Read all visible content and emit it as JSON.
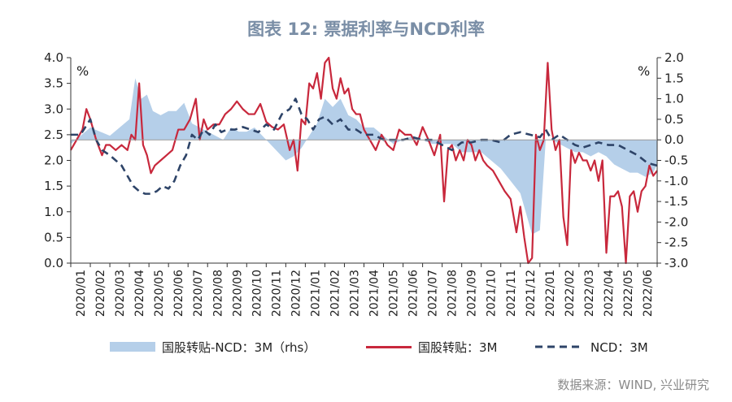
{
  "title": "图表 12:   票据利率与NCD利率",
  "source": "数据来源：WIND, 兴业研究",
  "colors": {
    "spread_fill": "#b5cfe9",
    "bill_line": "#c8283c",
    "ncd_line": "#2e4468",
    "axis": "#333333"
  },
  "chart_data": {
    "type": "line",
    "left_unit": "%",
    "right_unit": "%",
    "y_left_lim": [
      0.0,
      4.0
    ],
    "y_left_ticks": [
      "0.0",
      "0.5",
      "1.0",
      "1.5",
      "2.0",
      "2.5",
      "3.0",
      "3.5",
      "4.0"
    ],
    "y_right_lim": [
      -3.0,
      2.0
    ],
    "y_right_ticks": [
      "-3.0",
      "-2.5",
      "-2.0",
      "-1.5",
      "-1.0",
      "-0.5",
      "0.0",
      "0.5",
      "1.0",
      "1.5",
      "2.0"
    ],
    "x_labels": [
      "2020/01",
      "2020/02",
      "2020/03",
      "2020/04",
      "2020/05",
      "2020/06",
      "2020/07",
      "2020/08",
      "2020/09",
      "2020/10",
      "2020/11",
      "2020/12",
      "2021/01",
      "2021/02",
      "2021/03",
      "2021/04",
      "2021/05",
      "2021/06",
      "2021/07",
      "2021/08",
      "2021/09",
      "2021/10",
      "2021/11",
      "2021/12",
      "2022/01",
      "2022/02",
      "2022/03",
      "2022/04",
      "2022/05",
      "2022/06"
    ],
    "x_domain": [
      0,
      30
    ],
    "legend": [
      {
        "key": "spread",
        "label": "国股转贴-NCD：3M（rhs）",
        "style": "area"
      },
      {
        "key": "bill",
        "label": "国股转贴：3M",
        "style": "line"
      },
      {
        "key": "ncd",
        "label": "NCD：3M",
        "style": "dashed"
      }
    ],
    "series": [
      {
        "name": "国股转贴：3M",
        "axis": "left",
        "x": [
          0,
          0.3,
          0.6,
          0.8,
          1.0,
          1.3,
          1.6,
          1.8,
          2.0,
          2.3,
          2.6,
          2.9,
          3.1,
          3.3,
          3.5,
          3.7,
          3.9,
          4.1,
          4.3,
          4.6,
          4.9,
          5.2,
          5.5,
          5.8,
          6.1,
          6.4,
          6.6,
          6.8,
          7.0,
          7.3,
          7.6,
          7.9,
          8.2,
          8.5,
          8.8,
          9.1,
          9.4,
          9.7,
          10.0,
          10.3,
          10.6,
          10.9,
          11.2,
          11.4,
          11.6,
          11.8,
          12.0,
          12.2,
          12.4,
          12.6,
          12.8,
          13.0,
          13.2,
          13.4,
          13.6,
          13.8,
          14.0,
          14.2,
          14.4,
          14.6,
          14.8,
          15.0,
          15.3,
          15.6,
          15.9,
          16.2,
          16.5,
          16.8,
          17.1,
          17.4,
          17.7,
          18.0,
          18.3,
          18.6,
          18.9,
          19.1,
          19.3,
          19.5,
          19.7,
          19.9,
          20.1,
          20.3,
          20.5,
          20.7,
          20.9,
          21.1,
          21.3,
          21.6,
          21.9,
          22.2,
          22.5,
          22.8,
          23.0,
          23.2,
          23.4,
          23.6,
          23.8,
          24.0,
          24.2,
          24.4,
          24.6,
          24.8,
          25.0,
          25.2,
          25.4,
          25.6,
          25.8,
          26.0,
          26.2,
          26.4,
          26.6,
          26.8,
          27.0,
          27.2,
          27.4,
          27.6,
          27.8,
          28.0,
          28.2,
          28.4,
          28.6,
          28.8,
          29.0,
          29.2,
          29.4,
          29.6,
          29.8,
          30.0
        ],
        "values": [
          2.2,
          2.4,
          2.6,
          3.0,
          2.8,
          2.4,
          2.1,
          2.3,
          2.3,
          2.2,
          2.3,
          2.2,
          2.5,
          2.4,
          3.5,
          2.3,
          2.1,
          1.75,
          1.9,
          2.0,
          2.1,
          2.2,
          2.6,
          2.6,
          2.8,
          3.2,
          2.4,
          2.8,
          2.6,
          2.7,
          2.7,
          2.9,
          3.0,
          3.15,
          3.0,
          2.9,
          2.9,
          3.1,
          2.75,
          2.65,
          2.6,
          2.7,
          2.2,
          2.4,
          1.8,
          2.8,
          2.7,
          3.5,
          3.4,
          3.7,
          3.2,
          3.9,
          4.0,
          3.4,
          3.2,
          3.6,
          3.3,
          3.4,
          3.0,
          2.9,
          2.9,
          2.6,
          2.4,
          2.2,
          2.5,
          2.3,
          2.2,
          2.6,
          2.5,
          2.5,
          2.3,
          2.65,
          2.4,
          2.1,
          2.5,
          1.2,
          2.2,
          2.3,
          2.0,
          2.2,
          2.0,
          2.4,
          2.3,
          2.0,
          2.2,
          2.0,
          1.9,
          1.8,
          1.6,
          1.4,
          1.25,
          0.6,
          1.1,
          0.5,
          0.0,
          0.1,
          2.5,
          2.2,
          2.4,
          3.9,
          2.6,
          2.2,
          2.4,
          0.9,
          0.35,
          2.2,
          1.95,
          2.15,
          2.0,
          2.0,
          1.8,
          2.0,
          1.6,
          2.0,
          0.2,
          1.3,
          1.3,
          1.4,
          1.1,
          0.0,
          1.3,
          1.4,
          1.0,
          1.4,
          1.5,
          1.9,
          1.7,
          1.8
        ],
        "color": "#c8283c"
      },
      {
        "name": "NCD：3M",
        "axis": "left",
        "x": [
          0,
          0.5,
          1.0,
          1.3,
          1.6,
          2.0,
          2.3,
          2.6,
          2.9,
          3.2,
          3.5,
          3.8,
          4.1,
          4.4,
          4.7,
          5.0,
          5.3,
          5.6,
          5.9,
          6.2,
          6.5,
          6.8,
          7.1,
          7.4,
          7.7,
          8.0,
          8.4,
          8.8,
          9.2,
          9.6,
          10.0,
          10.4,
          10.8,
          11.2,
          11.5,
          11.8,
          12.1,
          12.4,
          12.7,
          13.0,
          13.4,
          13.8,
          14.2,
          14.6,
          15.0,
          15.5,
          16.0,
          16.5,
          17.0,
          17.5,
          18.0,
          18.5,
          19.0,
          19.5,
          20.0,
          20.5,
          21.0,
          21.5,
          22.0,
          22.5,
          23.0,
          23.5,
          24.0,
          24.3,
          24.6,
          25.0,
          25.4,
          25.8,
          26.2,
          26.6,
          27.0,
          27.5,
          28.0,
          28.5,
          29.0,
          29.5,
          30.0
        ],
        "values": [
          2.5,
          2.5,
          2.8,
          2.4,
          2.2,
          2.1,
          2.0,
          1.9,
          1.7,
          1.5,
          1.4,
          1.35,
          1.35,
          1.4,
          1.5,
          1.45,
          1.6,
          1.9,
          2.1,
          2.5,
          2.4,
          2.6,
          2.5,
          2.7,
          2.55,
          2.6,
          2.6,
          2.65,
          2.6,
          2.55,
          2.7,
          2.6,
          2.9,
          3.0,
          3.2,
          2.9,
          2.8,
          2.6,
          2.8,
          2.85,
          2.7,
          2.8,
          2.6,
          2.6,
          2.5,
          2.5,
          2.4,
          2.4,
          2.4,
          2.45,
          2.4,
          2.4,
          2.3,
          2.2,
          2.35,
          2.35,
          2.4,
          2.4,
          2.35,
          2.5,
          2.55,
          2.5,
          2.45,
          2.6,
          2.4,
          2.5,
          2.4,
          2.3,
          2.25,
          2.3,
          2.35,
          2.3,
          2.3,
          2.2,
          2.1,
          1.95,
          1.9
        ],
        "color": "#2e4468"
      },
      {
        "name": "国股转贴-NCD：3M（rhs）",
        "axis": "right",
        "x": [
          0,
          0.5,
          1.0,
          1.5,
          2.0,
          2.5,
          3.0,
          3.3,
          3.6,
          3.9,
          4.2,
          4.6,
          5.0,
          5.4,
          5.8,
          6.2,
          6.6,
          7.0,
          7.4,
          7.8,
          8.2,
          8.6,
          9.0,
          9.4,
          9.8,
          10.2,
          10.6,
          11.0,
          11.4,
          11.8,
          12.2,
          12.6,
          13.0,
          13.4,
          13.8,
          14.2,
          14.6,
          15.0,
          15.5,
          16.0,
          16.5,
          17.0,
          17.5,
          18.0,
          18.5,
          19.0,
          19.5,
          20.0,
          20.5,
          21.0,
          21.5,
          22.0,
          22.5,
          23.0,
          23.3,
          23.6,
          24.0,
          24.3,
          24.6,
          25.0,
          25.4,
          25.8,
          26.2,
          26.6,
          27.0,
          27.4,
          27.8,
          28.2,
          28.6,
          29.0,
          29.4,
          29.8,
          30.0
        ],
        "values": [
          -0.1,
          0.1,
          0.3,
          0.2,
          0.1,
          0.3,
          0.5,
          1.5,
          1.0,
          1.1,
          0.7,
          0.6,
          0.7,
          0.7,
          0.9,
          0.4,
          0.3,
          0.2,
          0.1,
          0.0,
          0.3,
          0.2,
          0.2,
          0.3,
          0.1,
          -0.1,
          -0.3,
          -0.5,
          -0.4,
          -0.2,
          0.1,
          0.4,
          1.0,
          0.8,
          1.0,
          0.6,
          0.5,
          0.3,
          0.3,
          0.1,
          -0.1,
          0.0,
          0.1,
          0.0,
          -0.1,
          -0.1,
          -0.1,
          -0.3,
          -0.3,
          -0.3,
          -0.5,
          -0.7,
          -1.0,
          -1.3,
          -1.8,
          -2.3,
          -2.2,
          0.0,
          0.0,
          -0.1,
          -0.2,
          -0.3,
          -0.3,
          -0.4,
          -0.3,
          -0.4,
          -0.6,
          -0.7,
          -0.8,
          -0.8,
          -0.9,
          -0.8,
          -0.6
        ],
        "color": "#b5cfe9"
      }
    ]
  }
}
